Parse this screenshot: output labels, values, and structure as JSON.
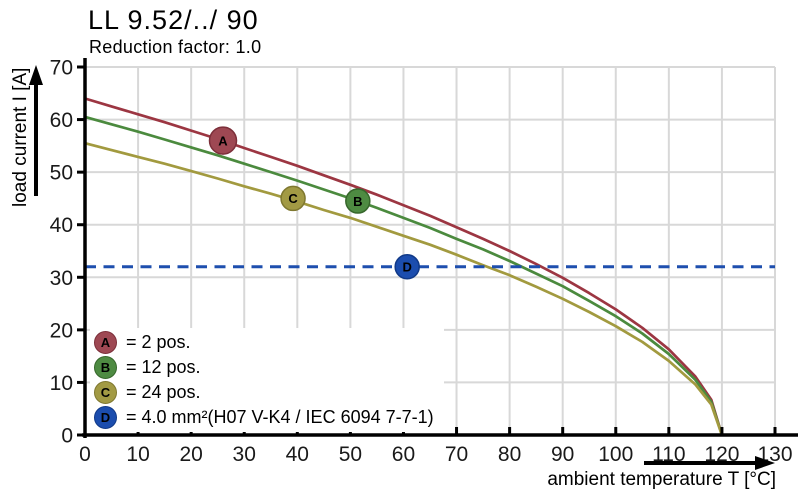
{
  "header": {
    "title": "LL 9.52/../ 90",
    "subtitle": "Reduction factor: 1.0"
  },
  "chart_data": {
    "type": "line",
    "title": "LL 9.52/../ 90",
    "subtitle": "Reduction factor: 1.0",
    "xlabel": "ambient temperature T [°C]",
    "ylabel": "load current I [A]",
    "xlim": [
      0,
      130
    ],
    "ylim": [
      0,
      70
    ],
    "x_ticks": [
      0,
      10,
      20,
      30,
      40,
      50,
      60,
      70,
      80,
      90,
      100,
      110,
      120,
      130
    ],
    "y_ticks": [
      0,
      10,
      20,
      30,
      40,
      50,
      60,
      70
    ],
    "grid": true,
    "grid_color": "#d8d8d8",
    "axis_color": "#000000",
    "legend_position": "inside bottom-left",
    "series": [
      {
        "id": "A",
        "label": "2 pos.",
        "style": "solid",
        "color": "#9c3642",
        "marker_fill": "#9e4853",
        "marker_stroke": "#7c2f3a",
        "points": [
          [
            0,
            64
          ],
          [
            5,
            62.5
          ],
          [
            10,
            61
          ],
          [
            15,
            59.5
          ],
          [
            20,
            57.9
          ],
          [
            25,
            56.3
          ],
          [
            30,
            54.6
          ],
          [
            35,
            52.9
          ],
          [
            40,
            51.2
          ],
          [
            45,
            49.4
          ],
          [
            50,
            47.6
          ],
          [
            55,
            45.7
          ],
          [
            60,
            43.7
          ],
          [
            65,
            41.7
          ],
          [
            70,
            39.5
          ],
          [
            75,
            37.3
          ],
          [
            80,
            35
          ],
          [
            85,
            32.5
          ],
          [
            90,
            29.9
          ],
          [
            95,
            27
          ],
          [
            100,
            23.9
          ],
          [
            105,
            20.4
          ],
          [
            110,
            16.3
          ],
          [
            115,
            11.1
          ],
          [
            118,
            6.7
          ],
          [
            120,
            0
          ]
        ]
      },
      {
        "id": "B",
        "label": "12 pos.",
        "style": "solid",
        "color": "#4b8a3e",
        "marker_fill": "#4e8b42",
        "marker_stroke": "#37672c",
        "points": [
          [
            0,
            60.5
          ],
          [
            5,
            59.1
          ],
          [
            10,
            57.7
          ],
          [
            15,
            56.2
          ],
          [
            20,
            54.7
          ],
          [
            25,
            53.2
          ],
          [
            30,
            51.6
          ],
          [
            35,
            50
          ],
          [
            40,
            48.4
          ],
          [
            45,
            46.7
          ],
          [
            50,
            45
          ],
          [
            55,
            43.2
          ],
          [
            60,
            41.3
          ],
          [
            65,
            39.4
          ],
          [
            70,
            37.3
          ],
          [
            75,
            35.3
          ],
          [
            80,
            33.1
          ],
          [
            85,
            30.7
          ],
          [
            90,
            28.3
          ],
          [
            95,
            25.5
          ],
          [
            100,
            22.6
          ],
          [
            105,
            19.3
          ],
          [
            110,
            15.4
          ],
          [
            115,
            10.5
          ],
          [
            118,
            6.3
          ],
          [
            120,
            0
          ]
        ]
      },
      {
        "id": "C",
        "label": "24 pos.",
        "style": "solid",
        "color": "#a29a3f",
        "marker_fill": "#a29a44",
        "marker_stroke": "#7f7830",
        "points": [
          [
            0,
            55.5
          ],
          [
            5,
            54.2
          ],
          [
            10,
            52.9
          ],
          [
            15,
            51.6
          ],
          [
            20,
            50.2
          ],
          [
            25,
            48.8
          ],
          [
            30,
            47.3
          ],
          [
            35,
            45.9
          ],
          [
            40,
            44.4
          ],
          [
            45,
            42.8
          ],
          [
            50,
            41.3
          ],
          [
            55,
            39.6
          ],
          [
            60,
            37.9
          ],
          [
            65,
            36.2
          ],
          [
            70,
            34.3
          ],
          [
            75,
            32.3
          ],
          [
            80,
            30.4
          ],
          [
            85,
            28.2
          ],
          [
            90,
            25.9
          ],
          [
            95,
            23.4
          ],
          [
            100,
            20.7
          ],
          [
            105,
            17.7
          ],
          [
            110,
            14.1
          ],
          [
            115,
            9.6
          ],
          [
            118,
            5.8
          ],
          [
            120,
            0
          ]
        ]
      },
      {
        "id": "D",
        "label": "4.0 mm²(H07 V-K4 / IEC 6094 7-7-1)",
        "style": "dashed",
        "color": "#1e4fae",
        "marker_fill": "#1b4dae",
        "marker_stroke": "#113a88",
        "points": [
          [
            0,
            32
          ],
          [
            130,
            32
          ]
        ]
      }
    ],
    "markers": [
      {
        "id": "A",
        "x": 26,
        "y": 56.0,
        "r": 13.5
      },
      {
        "id": "B",
        "x": 51.4,
        "y": 44.5,
        "r": 12
      },
      {
        "id": "C",
        "x": 39.2,
        "y": 45.0,
        "r": 12
      },
      {
        "id": "D",
        "x": 60.7,
        "y": 32.0,
        "r": 12
      }
    ],
    "legend": [
      {
        "letter": "A",
        "text": "= 2 pos."
      },
      {
        "letter": "B",
        "text": "= 12 pos."
      },
      {
        "letter": "C",
        "text": "= 24 pos."
      },
      {
        "letter": "D",
        "text": "= 4.0 mm²(H07 V-K4 / IEC 6094 7-7-1)"
      }
    ]
  }
}
